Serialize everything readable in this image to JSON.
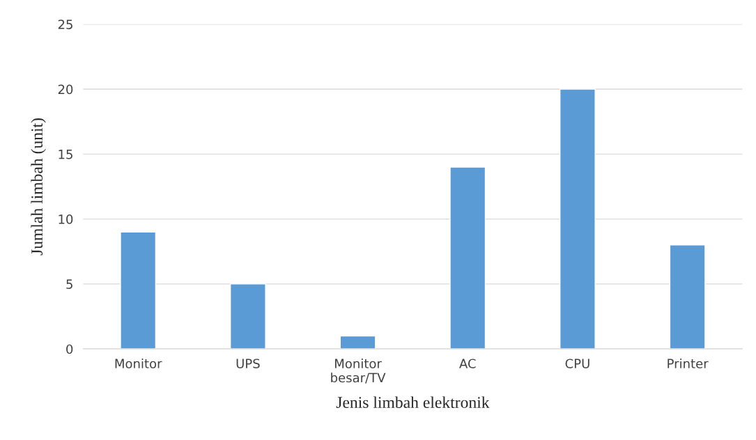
{
  "chart_data": {
    "type": "bar",
    "xlabel": "Jenis limbah elektronik",
    "ylabel": "Jumlah limbah (unit)",
    "categories": [
      "Monitor",
      "UPS",
      "Monitor\nbesar/TV",
      "AC",
      "CPU",
      "Printer"
    ],
    "values": [
      9,
      5,
      1,
      14,
      20,
      8
    ],
    "color": "#5b9bd5",
    "ylim": [
      0,
      25
    ],
    "yticks": [
      0,
      5,
      10,
      15,
      20,
      25
    ],
    "grid": "y",
    "legend": false
  }
}
